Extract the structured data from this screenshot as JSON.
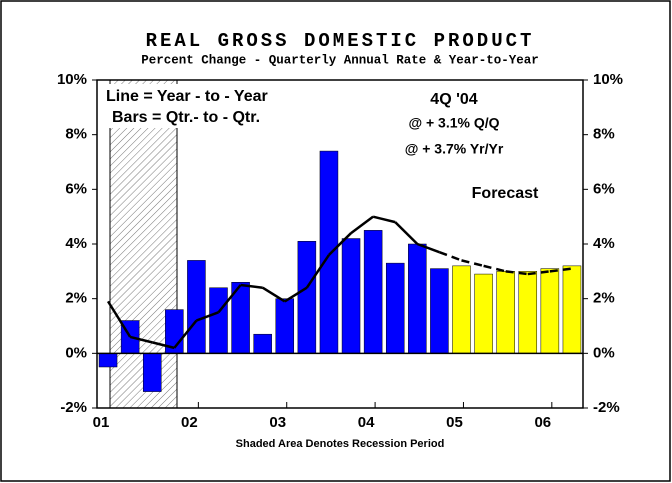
{
  "chart_data": {
    "type": "bar",
    "title": "REAL GROSS DOMESTIC PRODUCT",
    "subtitle": "Percent Change - Quarterly Annual Rate & Year-to-Year",
    "footnote": "Shaded Area Denotes Recession Period",
    "annotations": [
      "Line = Year - to - Year",
      "Bars = Qtr.- to - Qtr.",
      "4Q '04",
      "@ + 3.1% Q/Q",
      "@ + 3.7% Yr/Yr",
      "Forecast"
    ],
    "categories": [
      "01",
      null,
      null,
      null,
      "02",
      null,
      null,
      null,
      "03",
      null,
      null,
      null,
      "04",
      null,
      null,
      null,
      "05",
      null,
      null,
      null,
      "06",
      null
    ],
    "series": [
      {
        "name": "Qtr.-to-Qtr.",
        "kind": "bar",
        "color": "#0000ff",
        "values": [
          -0.5,
          1.2,
          -1.4,
          1.6,
          3.4,
          2.4,
          2.6,
          0.7,
          2.0,
          4.1,
          7.4,
          4.2,
          4.5,
          3.3,
          4.0,
          3.1,
          null,
          null,
          null,
          null,
          null,
          null
        ]
      },
      {
        "name": "Forecast",
        "kind": "bar",
        "color": "#ffff00",
        "values": [
          null,
          null,
          null,
          null,
          null,
          null,
          null,
          null,
          null,
          null,
          null,
          null,
          null,
          null,
          null,
          null,
          3.2,
          2.9,
          3.0,
          3.0,
          3.1,
          3.2
        ]
      },
      {
        "name": "Year-to-Year",
        "kind": "line",
        "color": "#000000",
        "values": [
          1.9,
          0.6,
          0.4,
          0.2,
          1.2,
          1.5,
          2.5,
          2.4,
          1.9,
          2.4,
          3.6,
          4.4,
          5.0,
          4.8,
          4.0,
          3.7,
          3.4,
          3.2,
          3.0,
          2.9,
          3.0,
          3.1
        ]
      }
    ],
    "ylim": [
      -2,
      10
    ],
    "yticks": [
      {
        "value": -2,
        "label": "-2%"
      },
      {
        "value": 0,
        "label": "0%"
      },
      {
        "value": 2,
        "label": "2%"
      },
      {
        "value": 4,
        "label": "4%"
      },
      {
        "value": 6,
        "label": "6%"
      },
      {
        "value": 8,
        "label": "8%"
      },
      {
        "value": 10,
        "label": "10%"
      }
    ],
    "y2lim": [
      -2,
      10
    ],
    "y2ticks": [
      {
        "value": -2,
        "label": "-2%"
      },
      {
        "value": 0,
        "label": "0%"
      },
      {
        "value": 2,
        "label": "2%"
      },
      {
        "value": 4,
        "label": "4%"
      },
      {
        "value": 6,
        "label": "6%"
      },
      {
        "value": 8,
        "label": "8%"
      },
      {
        "value": 10,
        "label": "10%"
      }
    ]
  }
}
